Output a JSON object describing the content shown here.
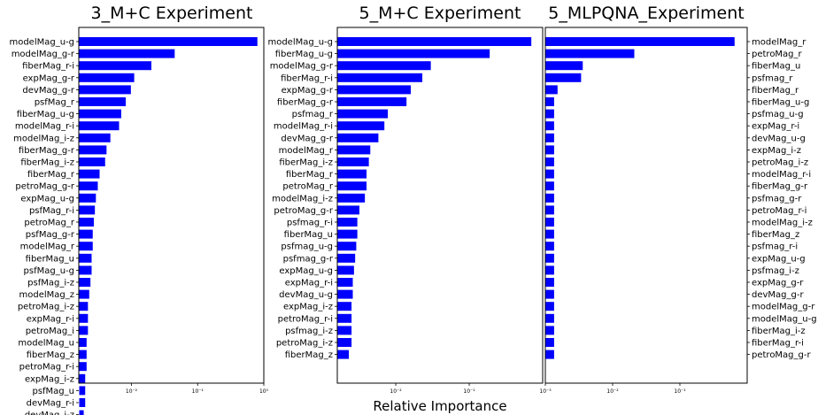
{
  "xlabel": "Relative Importance",
  "colors": {
    "bar": "#0000ff",
    "axis": "#000000",
    "background": "#ffffff"
  },
  "chart_data": [
    {
      "type": "bar",
      "orientation": "horizontal",
      "title": "3_M+C Experiment",
      "xscale": "log",
      "xlim": [
        0.0016,
        1.0
      ],
      "xticks": [
        0.01,
        0.1,
        1
      ],
      "xtick_labels": [
        "10⁻²",
        "10⁻¹",
        "10⁰"
      ],
      "label_side": "left",
      "categories": [
        "modelMag_u-g",
        "modelMag_g-r",
        "fiberMag_r-i",
        "expMag_g-r",
        "devMag_g-r",
        "psfMag_r",
        "fiberMag_u-g",
        "modelMag_r-i",
        "modelMag_i-z",
        "fiberMag_g-r",
        "fiberMag_i-z",
        "fiberMag_r",
        "petroMag_g-r",
        "expMag_u-g",
        "psfMag_r-i",
        "petroMag_r",
        "psfMag_g-r",
        "modelMag_r",
        "fiberMag_u",
        "psfMag_u-g",
        "psfMag_i-z",
        "modelMag_z",
        "petroMag_i-z",
        "expMag_r-i",
        "petroMag_i",
        "modelMag_u",
        "fiberMag_z",
        "petroMag_r-i",
        "expMag_i-z",
        "psfMag_u",
        "devMag_r-i",
        "devMag_i-z"
      ],
      "values": [
        0.8,
        0.045,
        0.02,
        0.011,
        0.0098,
        0.0082,
        0.007,
        0.0065,
        0.0048,
        0.0042,
        0.004,
        0.0033,
        0.0031,
        0.0029,
        0.0028,
        0.0027,
        0.0026,
        0.0026,
        0.0025,
        0.0025,
        0.0024,
        0.0023,
        0.0022,
        0.0022,
        0.0022,
        0.0021,
        0.0021,
        0.0021,
        0.002,
        0.002,
        0.002,
        0.0019
      ]
    },
    {
      "type": "bar",
      "orientation": "horizontal",
      "title": "5_M+C Experiment",
      "xscale": "log",
      "xlim": [
        0.0016,
        1.0
      ],
      "xticks": [
        0.01,
        0.1
      ],
      "xtick_labels": [
        "10⁻²",
        "10⁻¹"
      ],
      "label_side": "left",
      "categories": [
        "modelMag_u-g",
        "fiberMag_u-g",
        "modelMag_g-r",
        "fiberMag_r-i",
        "expMag_g-r",
        "fiberMag_g-r",
        "psfmag_r",
        "modelMag_r-i",
        "devMag_g-r",
        "modelMag_r",
        "fiberMag_i-z",
        "fiberMag_r",
        "petroMag_r",
        "modelMag_i-z",
        "petroMag_g-r",
        "psfmag_r-i",
        "fiberMag_u",
        "psfmag_u-g",
        "psfmag_g-r",
        "expMag_u-g",
        "expMag_r-i",
        "devMag_u-g",
        "expMag_i-z",
        "petroMag_r-i",
        "psfmag_i-z",
        "petroMag_i-z",
        "fiberMag_z"
      ],
      "values": [
        0.7,
        0.19,
        0.03,
        0.023,
        0.016,
        0.014,
        0.0078,
        0.007,
        0.0058,
        0.0045,
        0.0043,
        0.004,
        0.004,
        0.0038,
        0.0032,
        0.003,
        0.003,
        0.0029,
        0.0028,
        0.0027,
        0.0026,
        0.0026,
        0.0025,
        0.0025,
        0.0025,
        0.0025,
        0.0023
      ]
    },
    {
      "type": "bar",
      "orientation": "horizontal",
      "title": "5_MLPQNA_Experiment",
      "xscale": "log",
      "xlim": [
        0.001,
        1.0
      ],
      "xticks": [
        0.001,
        0.01,
        0.1
      ],
      "xtick_labels": [
        "10⁻³",
        "10⁻²",
        "10⁻¹"
      ],
      "label_side": "right",
      "categories": [
        "modelMag_r",
        "petroMag_r",
        "fiberMag_u",
        "psfmag_r",
        "fiberMag_r",
        "fiberMag_u-g",
        "psfmag_u-g",
        "expMag_r-i",
        "devMag_u-g",
        "expMag_i-z",
        "petroMag_i-z",
        "modelMag_r-i",
        "fiberMag_g-r",
        "psfmag_g-r",
        "petroMag_r-i",
        "modelMag_i-z",
        "fiberMag_z",
        "psfmag_r-i",
        "expMag_u-g",
        "psfmag_i-z",
        "expMag_g-r",
        "devMag_g-r",
        "modelMag_g-r",
        "modelMag_u-g",
        "fiberMag_i-z",
        "fiberMag_r-i",
        "petroMag_g-r"
      ],
      "values": [
        0.65,
        0.021,
        0.0036,
        0.0034,
        0.00152,
        0.00135,
        0.00135,
        0.00135,
        0.00135,
        0.00135,
        0.00135,
        0.00135,
        0.00135,
        0.00135,
        0.00135,
        0.00135,
        0.00135,
        0.00135,
        0.00135,
        0.00135,
        0.00135,
        0.00135,
        0.00135,
        0.00135,
        0.00135,
        0.00135,
        0.00135
      ]
    }
  ]
}
